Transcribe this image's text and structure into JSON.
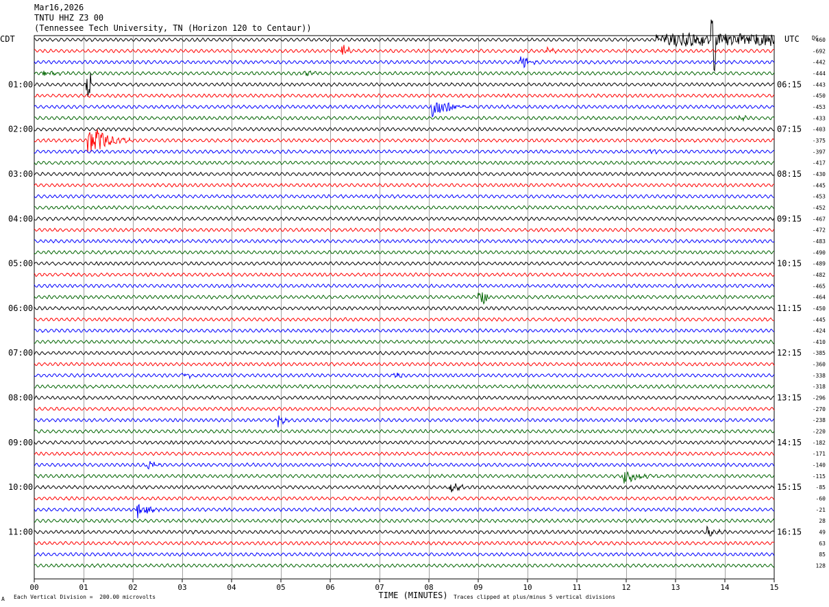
{
  "header": {
    "date": "Mar16,2026",
    "channel": "TNTU HHZ Z3 00",
    "station": "(Tennessee Tech University, TN (Horizon 120 to Centaur))"
  },
  "footer": {
    "scale_note": "Each Vertical Division =  200.00 microvolts",
    "clip_note": "Traces clipped at plus/minus 5 vertical divisions",
    "corner_mark": "A"
  },
  "chart_data": {
    "type": "line",
    "title": "",
    "xlabel": "TIME (MINUTES)",
    "left_axis_label": "CDT",
    "right_axis_label": "UTC",
    "dc_label": "DC",
    "xlim": [
      0,
      15
    ],
    "x_ticks": [
      "00",
      "01",
      "02",
      "03",
      "04",
      "05",
      "06",
      "07",
      "08",
      "09",
      "10",
      "11",
      "12",
      "13",
      "14",
      "15"
    ],
    "grid": true,
    "row_count": 48,
    "trace_colors": [
      "#000000",
      "#ff0000",
      "#0000ff",
      "#006400"
    ],
    "left_hour_labels": [
      {
        "row": 4,
        "label": "01:00"
      },
      {
        "row": 8,
        "label": "02:00"
      },
      {
        "row": 12,
        "label": "03:00"
      },
      {
        "row": 16,
        "label": "04:00"
      },
      {
        "row": 20,
        "label": "05:00"
      },
      {
        "row": 24,
        "label": "06:00"
      },
      {
        "row": 28,
        "label": "07:00"
      },
      {
        "row": 32,
        "label": "08:00"
      },
      {
        "row": 36,
        "label": "09:00"
      },
      {
        "row": 40,
        "label": "10:00"
      },
      {
        "row": 44,
        "label": "11:00"
      }
    ],
    "right_hour_labels": [
      {
        "row": 4,
        "label": "06:15"
      },
      {
        "row": 8,
        "label": "07:15"
      },
      {
        "row": 12,
        "label": "08:15"
      },
      {
        "row": 16,
        "label": "09:15"
      },
      {
        "row": 20,
        "label": "10:15"
      },
      {
        "row": 24,
        "label": "11:15"
      },
      {
        "row": 28,
        "label": "12:15"
      },
      {
        "row": 32,
        "label": "13:15"
      },
      {
        "row": 36,
        "label": "14:15"
      },
      {
        "row": 40,
        "label": "15:15"
      },
      {
        "row": 44,
        "label": "16:15"
      }
    ],
    "dc_offsets": [
      "-460",
      "-692",
      "-442",
      "-444",
      "-443",
      "-450",
      "-453",
      "-433",
      "-403",
      "-375",
      "-397",
      "-417",
      "-430",
      "-445",
      "-453",
      "-452",
      "-467",
      "-472",
      "-483",
      "-490",
      "-489",
      "-482",
      "-465",
      "-464",
      "-450",
      "-445",
      "-424",
      "-410",
      "-385",
      "-360",
      "-338",
      "-318",
      "-296",
      "-270",
      "-238",
      "-220",
      "-182",
      "-171",
      "-140",
      "-115",
      "-85",
      "-60",
      "-21",
      "28",
      "49",
      "63",
      "85",
      "128"
    ],
    "events": [
      {
        "row": 0,
        "minute": 12.6,
        "duration": 2.4,
        "amp": 8,
        "kind": "noise"
      },
      {
        "row": 0,
        "minute": 13.76,
        "duration": 0.05,
        "amp": 50,
        "kind": "spike"
      },
      {
        "row": 1,
        "minute": 6.25,
        "duration": 0.3,
        "amp": 12,
        "kind": "event"
      },
      {
        "row": 1,
        "minute": 10.4,
        "duration": 0.3,
        "amp": 6,
        "kind": "event"
      },
      {
        "row": 2,
        "minute": 9.85,
        "duration": 0.5,
        "amp": 10,
        "kind": "event"
      },
      {
        "row": 3,
        "minute": 0.2,
        "duration": 0.6,
        "amp": 6,
        "kind": "event"
      },
      {
        "row": 3,
        "minute": 5.4,
        "duration": 0.6,
        "amp": 5,
        "kind": "event"
      },
      {
        "row": 4,
        "minute": 1.1,
        "duration": 0.05,
        "amp": 18,
        "kind": "spike"
      },
      {
        "row": 6,
        "minute": 8.05,
        "duration": 0.9,
        "amp": 20,
        "kind": "event"
      },
      {
        "row": 7,
        "minute": 14.3,
        "duration": 0.2,
        "amp": 6,
        "kind": "event"
      },
      {
        "row": 9,
        "minute": 1.1,
        "duration": 0.9,
        "amp": 30,
        "kind": "event"
      },
      {
        "row": 10,
        "minute": 12.5,
        "duration": 0.3,
        "amp": 4,
        "kind": "event"
      },
      {
        "row": 23,
        "minute": 9.1,
        "duration": 0.1,
        "amp": 10,
        "kind": "spike"
      },
      {
        "row": 30,
        "minute": 3.0,
        "duration": 0.4,
        "amp": 5,
        "kind": "event"
      },
      {
        "row": 30,
        "minute": 7.3,
        "duration": 0.4,
        "amp": 4,
        "kind": "event"
      },
      {
        "row": 34,
        "minute": 4.95,
        "duration": 0.3,
        "amp": 10,
        "kind": "event"
      },
      {
        "row": 38,
        "minute": 2.3,
        "duration": 0.4,
        "amp": 10,
        "kind": "event"
      },
      {
        "row": 39,
        "minute": 11.95,
        "duration": 0.8,
        "amp": 14,
        "kind": "event"
      },
      {
        "row": 40,
        "minute": 8.45,
        "duration": 0.5,
        "amp": 10,
        "kind": "event"
      },
      {
        "row": 42,
        "minute": 2.1,
        "duration": 0.6,
        "amp": 12,
        "kind": "event"
      },
      {
        "row": 44,
        "minute": 13.65,
        "duration": 0.4,
        "amp": 9,
        "kind": "event"
      }
    ]
  }
}
